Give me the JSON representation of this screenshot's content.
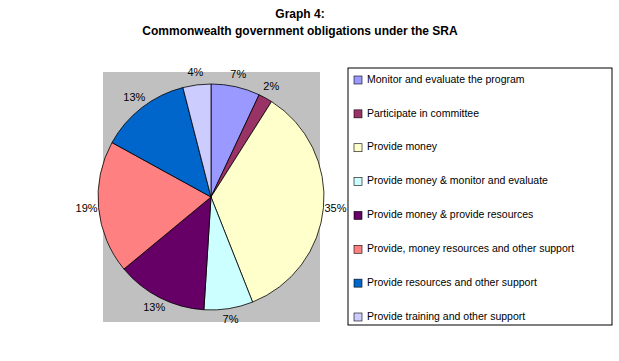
{
  "chart_data": {
    "type": "pie",
    "title": "Graph 4:",
    "subtitle": "Commonwealth government obligations under the SRA",
    "categories": [
      "Monitor and evaluate the program",
      "Participate in committee",
      "Provide money",
      "Provide money & monitor and evaluate",
      "Provide money & provide resources",
      "Provide, money resources and other support",
      "Provide resources and other support",
      "Provide training and other support"
    ],
    "values": [
      7,
      2,
      35,
      7,
      13,
      19,
      13,
      4
    ],
    "value_labels": [
      "7%",
      "2%",
      "35%",
      "7%",
      "13%",
      "19%",
      "13%",
      "4%"
    ],
    "colors": [
      "#9999ff",
      "#993366",
      "#ffffcc",
      "#ccffff",
      "#660066",
      "#ff8080",
      "#0066cc",
      "#ccccff"
    ],
    "data_labels": true,
    "legend": "right"
  }
}
